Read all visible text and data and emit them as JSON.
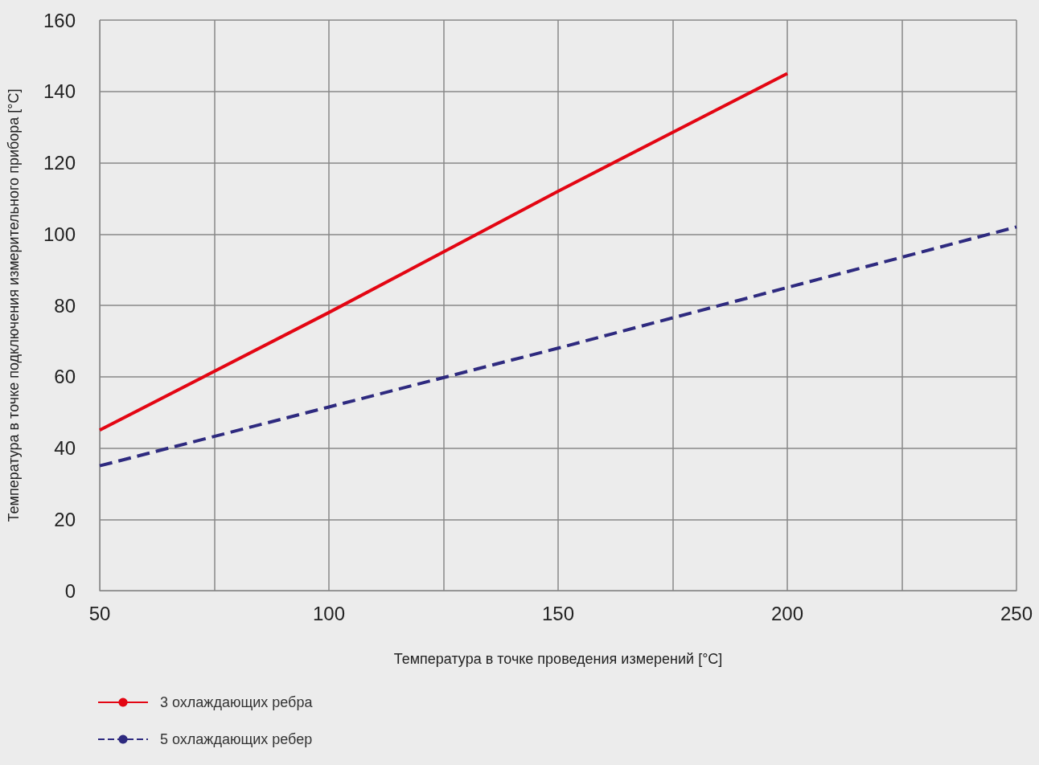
{
  "chart_data": {
    "type": "line",
    "xlabel": "Температура в точке проведения измерений [°C]",
    "ylabel": "Температура в точке подключения измерительного прибора [°C]",
    "xlim": [
      50,
      250
    ],
    "xticks": [
      50,
      {
        "value": 75,
        "label": null
      },
      100,
      {
        "value": 125,
        "label": null
      },
      150,
      {
        "value": 175,
        "label": null
      },
      200,
      {
        "value": 225,
        "label": null
      },
      250
    ],
    "ylim": [
      0,
      160
    ],
    "yticks": [
      0,
      20,
      40,
      60,
      80,
      100,
      120,
      140,
      160
    ],
    "grid": true,
    "legend": "bottom left",
    "marker": "none",
    "series": [
      {
        "name": "3 охлаждающих ребра",
        "color": "#e30613",
        "x": [
          50,
          100,
          150,
          200
        ],
        "values": [
          45,
          78,
          112,
          145
        ],
        "line_style": "solid"
      },
      {
        "name": "5 охлаждающих ребер",
        "color": "#2e2a7f",
        "x": [
          50,
          100,
          150,
          200,
          250
        ],
        "values": [
          35,
          51.5,
          68,
          85,
          102
        ],
        "line_style": "dashed"
      }
    ]
  }
}
